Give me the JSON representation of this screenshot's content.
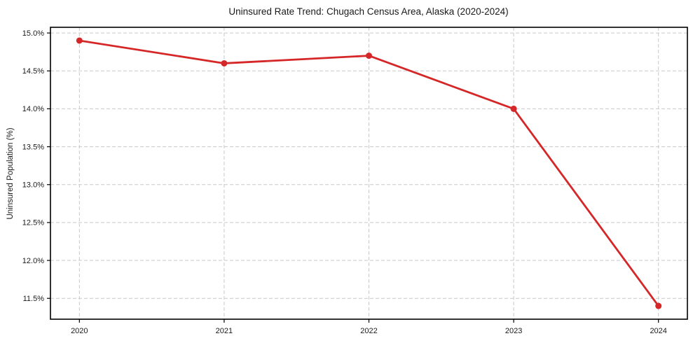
{
  "chart_data": {
    "type": "line",
    "title": "Uninsured Rate Trend: Chugach Census Area, Alaska (2020-2024)",
    "xlabel": "",
    "ylabel": "Uninsured Population (%)",
    "x": [
      2020,
      2021,
      2022,
      2023,
      2024
    ],
    "values": [
      14.9,
      14.6,
      14.7,
      14.0,
      11.4
    ],
    "xlim": [
      2019.8,
      2024.2
    ],
    "ylim": [
      11.225,
      15.075
    ],
    "xticks": [
      {
        "label": "2020",
        "value": 2020
      },
      {
        "label": "2021",
        "value": 2021
      },
      {
        "label": "2022",
        "value": 2022
      },
      {
        "label": "2023",
        "value": 2023
      },
      {
        "label": "2024",
        "value": 2024
      }
    ],
    "yticks": [
      {
        "label": "15.0%",
        "value": 15.0
      },
      {
        "label": "14.5%",
        "value": 14.5
      },
      {
        "label": "14.0%",
        "value": 14.0
      },
      {
        "label": "13.5%",
        "value": 13.5
      },
      {
        "label": "13.0%",
        "value": 13.0
      },
      {
        "label": "12.5%",
        "value": 12.5
      },
      {
        "label": "12.0%",
        "value": 12.0
      },
      {
        "label": "11.5%",
        "value": 11.5
      }
    ],
    "grid": true,
    "legend": false,
    "marker": "circle",
    "colors": {
      "line": "#d62728",
      "marker": "#d62728",
      "grid": "#c9c9c9",
      "spine": "#000000",
      "text": "#1a1a1a",
      "background": "#ffffff"
    }
  }
}
